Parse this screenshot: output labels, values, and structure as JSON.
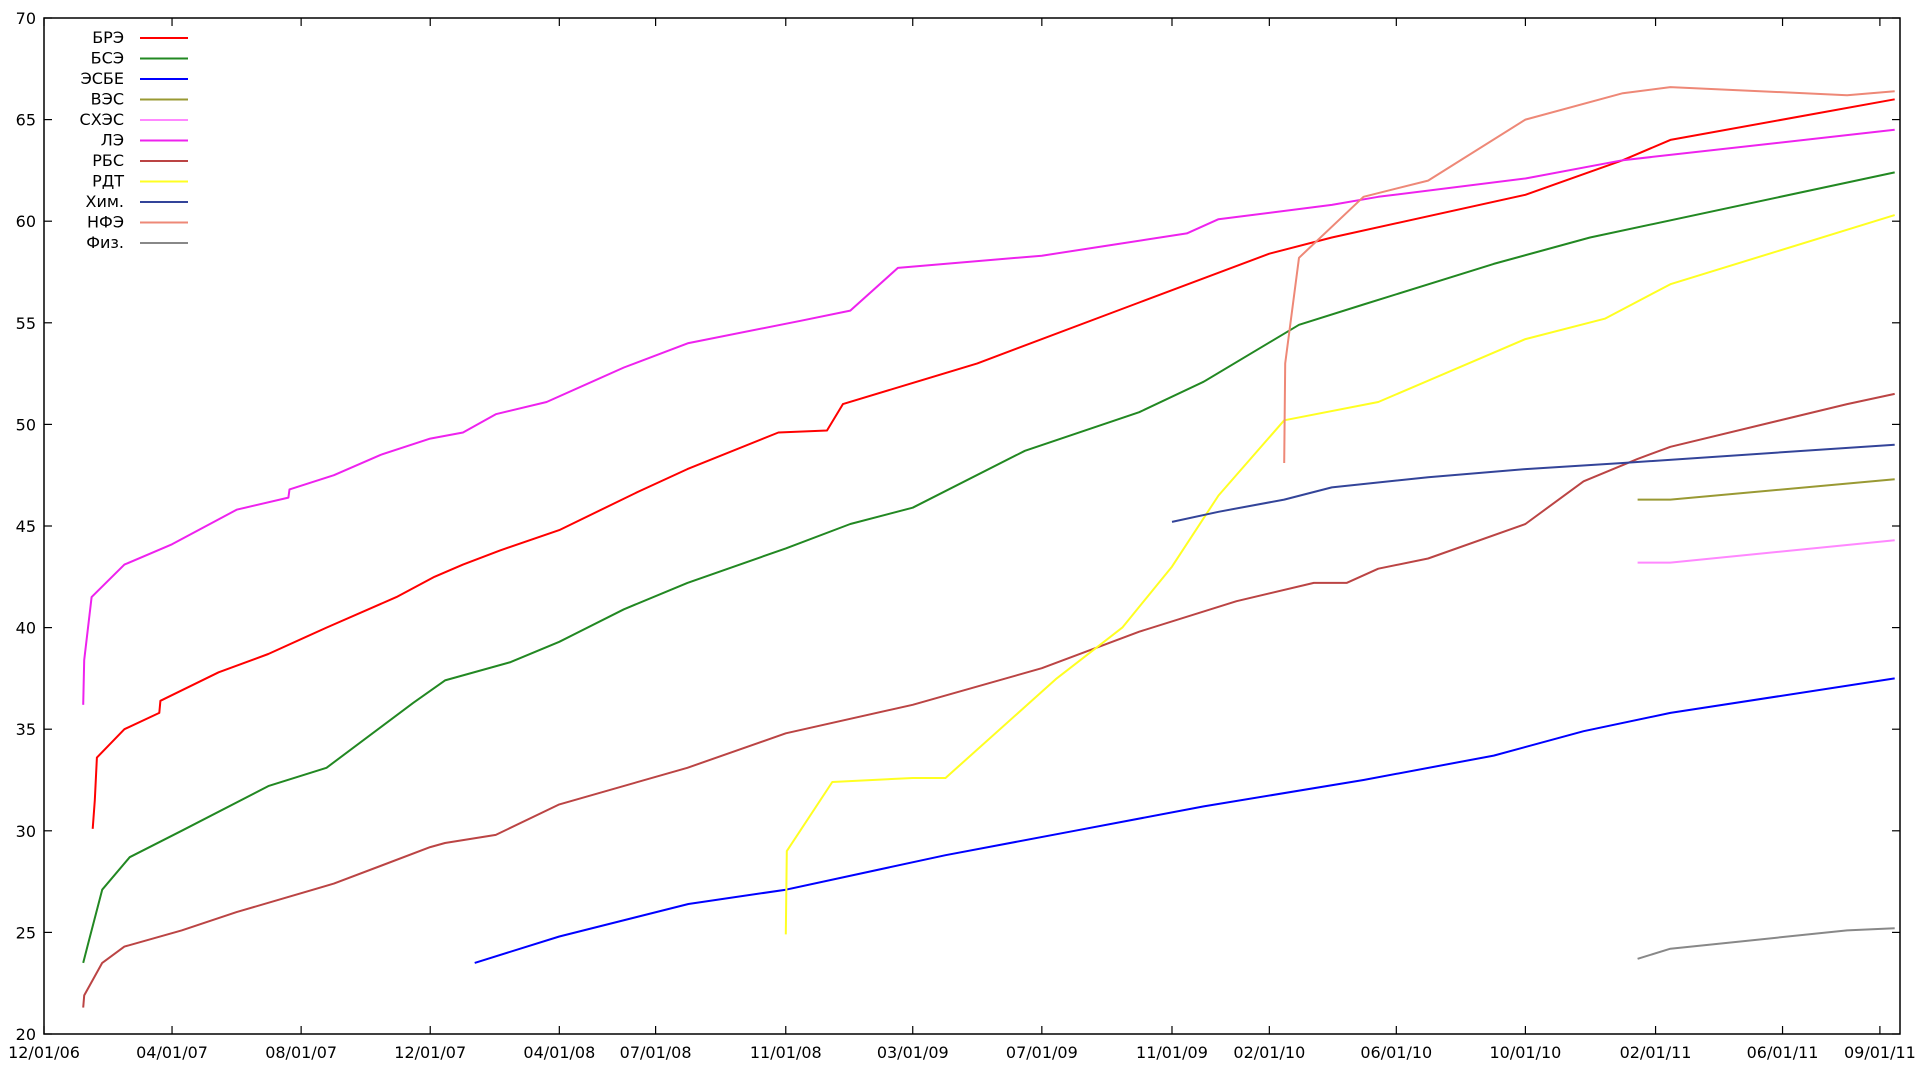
{
  "chart_data": {
    "type": "line",
    "title": "",
    "xlabel": "",
    "ylabel": "",
    "xlim": [
      "2006-12-01",
      "2011-09-20"
    ],
    "ylim": [
      20,
      70
    ],
    "grid": false,
    "legend_position": "top-left",
    "x_ticks": [
      "12/01/06",
      "04/01/07",
      "08/01/07",
      "12/01/07",
      "04/01/08",
      "07/01/08",
      "11/01/08",
      "03/01/09",
      "07/01/09",
      "11/01/09",
      "02/01/10",
      "06/01/10",
      "10/01/10",
      "02/01/11",
      "06/01/11",
      "09/01/11"
    ],
    "y_ticks": [
      20,
      25,
      30,
      35,
      40,
      45,
      50,
      55,
      60,
      65,
      70
    ],
    "series": [
      {
        "name": "БРЭ",
        "color": "#ff0000",
        "points": [
          [
            "2007-01-16",
            30.1
          ],
          [
            "2007-01-18",
            31.5
          ],
          [
            "2007-01-20",
            33.6
          ],
          [
            "2007-02-15",
            35.0
          ],
          [
            "2007-03-20",
            35.8
          ],
          [
            "2007-03-21",
            36.4
          ],
          [
            "2007-05-15",
            37.8
          ],
          [
            "2007-07-01",
            38.7
          ],
          [
            "2007-08-25",
            40.0
          ],
          [
            "2007-10-30",
            41.5
          ],
          [
            "2007-12-05",
            42.5
          ],
          [
            "2008-01-01",
            43.1
          ],
          [
            "2008-02-05",
            43.8
          ],
          [
            "2008-04-01",
            44.8
          ],
          [
            "2008-06-15",
            46.7
          ],
          [
            "2008-07-31",
            47.8
          ],
          [
            "2008-10-25",
            49.6
          ],
          [
            "2008-12-10",
            49.7
          ],
          [
            "2008-12-25",
            51.0
          ],
          [
            "2009-05-01",
            53.0
          ],
          [
            "2009-10-01",
            56.0
          ],
          [
            "2010-02-01",
            58.4
          ],
          [
            "2010-04-01",
            59.2
          ],
          [
            "2010-10-01",
            61.3
          ],
          [
            "2011-01-01",
            63.0
          ],
          [
            "2011-02-15",
            64.0
          ],
          [
            "2011-09-15",
            66.0
          ]
        ]
      },
      {
        "name": "БСЭ",
        "color": "#228822",
        "points": [
          [
            "2007-01-07",
            23.5
          ],
          [
            "2007-01-12",
            24.5
          ],
          [
            "2007-01-25",
            27.1
          ],
          [
            "2007-02-20",
            28.7
          ],
          [
            "2007-04-10",
            30.0
          ],
          [
            "2007-07-01",
            32.2
          ],
          [
            "2007-08-25",
            33.1
          ],
          [
            "2007-11-15",
            36.3
          ],
          [
            "2007-12-15",
            37.4
          ],
          [
            "2008-02-15",
            38.3
          ],
          [
            "2008-04-01",
            39.3
          ],
          [
            "2008-06-01",
            40.9
          ],
          [
            "2008-07-31",
            42.2
          ],
          [
            "2008-11-01",
            43.9
          ],
          [
            "2009-01-01",
            45.1
          ],
          [
            "2009-03-01",
            45.9
          ],
          [
            "2009-06-15",
            48.7
          ],
          [
            "2009-10-01",
            50.6
          ],
          [
            "2009-12-01",
            52.1
          ],
          [
            "2010-03-01",
            54.9
          ],
          [
            "2010-05-01",
            55.9
          ],
          [
            "2010-09-01",
            57.9
          ],
          [
            "2010-12-01",
            59.2
          ],
          [
            "2011-09-15",
            62.4
          ]
        ]
      },
      {
        "name": "ЭСБЕ",
        "color": "#0000ff",
        "points": [
          [
            "2008-01-12",
            23.5
          ],
          [
            "2008-04-01",
            24.8
          ],
          [
            "2008-08-01",
            26.4
          ],
          [
            "2008-11-01",
            27.1
          ],
          [
            "2009-04-01",
            28.8
          ],
          [
            "2009-08-01",
            30.0
          ],
          [
            "2009-12-01",
            31.2
          ],
          [
            "2010-05-01",
            32.5
          ],
          [
            "2010-09-01",
            33.7
          ],
          [
            "2010-11-25",
            34.9
          ],
          [
            "2011-02-15",
            35.8
          ],
          [
            "2011-09-15",
            37.5
          ]
        ]
      },
      {
        "name": "ВЭС",
        "color": "#999933",
        "points": [
          [
            "2011-01-15",
            46.3
          ],
          [
            "2011-02-15",
            46.3
          ],
          [
            "2011-09-15",
            47.3
          ]
        ]
      },
      {
        "name": "СХЭС",
        "color": "#ff88ff",
        "points": [
          [
            "2011-01-15",
            43.2
          ],
          [
            "2011-02-15",
            43.2
          ],
          [
            "2011-09-15",
            44.3
          ]
        ]
      },
      {
        "name": "ЛЭ",
        "color": "#ee22ee",
        "points": [
          [
            "2007-01-07",
            36.2
          ],
          [
            "2007-01-08",
            38.4
          ],
          [
            "2007-01-15",
            41.5
          ],
          [
            "2007-02-15",
            43.1
          ],
          [
            "2007-04-01",
            44.1
          ],
          [
            "2007-06-01",
            45.8
          ],
          [
            "2007-07-20",
            46.4
          ],
          [
            "2007-07-21",
            46.8
          ],
          [
            "2007-09-01",
            47.5
          ],
          [
            "2007-10-15",
            48.5
          ],
          [
            "2007-12-01",
            49.3
          ],
          [
            "2008-01-01",
            49.6
          ],
          [
            "2008-02-01",
            50.5
          ],
          [
            "2008-03-20",
            51.1
          ],
          [
            "2008-06-01",
            52.8
          ],
          [
            "2008-08-01",
            54.0
          ],
          [
            "2008-11-15",
            55.1
          ],
          [
            "2009-01-01",
            55.6
          ],
          [
            "2009-02-15",
            57.7
          ],
          [
            "2009-07-01",
            58.3
          ],
          [
            "2009-09-01",
            58.8
          ],
          [
            "2009-11-15",
            59.4
          ],
          [
            "2009-12-15",
            60.1
          ],
          [
            "2010-04-01",
            60.8
          ],
          [
            "2010-05-15",
            61.2
          ],
          [
            "2010-10-01",
            62.1
          ],
          [
            "2011-01-01",
            63.0
          ],
          [
            "2011-09-15",
            64.5
          ]
        ]
      },
      {
        "name": "РБС",
        "color": "#bb4444",
        "points": [
          [
            "2007-01-07",
            21.3
          ],
          [
            "2007-01-08",
            21.9
          ],
          [
            "2007-01-25",
            23.5
          ],
          [
            "2007-02-15",
            24.3
          ],
          [
            "2007-04-10",
            25.1
          ],
          [
            "2007-06-01",
            26.0
          ],
          [
            "2007-09-01",
            27.4
          ],
          [
            "2007-12-01",
            29.2
          ],
          [
            "2007-12-15",
            29.4
          ],
          [
            "2008-02-01",
            29.8
          ],
          [
            "2008-04-01",
            31.3
          ],
          [
            "2008-07-31",
            33.1
          ],
          [
            "2008-11-01",
            34.8
          ],
          [
            "2009-03-01",
            36.2
          ],
          [
            "2009-07-01",
            38.0
          ],
          [
            "2009-10-01",
            39.8
          ],
          [
            "2010-01-01",
            41.3
          ],
          [
            "2010-03-15",
            42.2
          ],
          [
            "2010-04-15",
            42.2
          ],
          [
            "2010-05-15",
            42.9
          ],
          [
            "2010-07-01",
            43.4
          ],
          [
            "2010-10-01",
            45.1
          ],
          [
            "2010-11-25",
            47.2
          ],
          [
            "2011-01-15",
            48.3
          ],
          [
            "2011-02-15",
            48.9
          ],
          [
            "2011-08-01",
            51.0
          ],
          [
            "2011-09-15",
            51.5
          ]
        ]
      },
      {
        "name": "РДТ",
        "color": "#ffff22",
        "points": [
          [
            "2008-11-01",
            24.9
          ],
          [
            "2008-11-02",
            29.0
          ],
          [
            "2008-12-15",
            32.4
          ],
          [
            "2009-03-01",
            32.6
          ],
          [
            "2009-04-01",
            32.6
          ],
          [
            "2009-07-15",
            37.5
          ],
          [
            "2009-09-15",
            40.0
          ],
          [
            "2009-11-01",
            43.0
          ],
          [
            "2009-12-15",
            46.5
          ],
          [
            "2010-02-15",
            50.2
          ],
          [
            "2010-05-15",
            51.1
          ],
          [
            "2010-10-01",
            54.2
          ],
          [
            "2010-12-15",
            55.2
          ],
          [
            "2011-02-15",
            56.9
          ],
          [
            "2011-09-15",
            60.3
          ]
        ]
      },
      {
        "name": "Хим.",
        "color": "#334499",
        "points": [
          [
            "2009-11-01",
            45.2
          ],
          [
            "2009-12-15",
            45.7
          ],
          [
            "2010-02-15",
            46.3
          ],
          [
            "2010-04-01",
            46.9
          ],
          [
            "2010-07-01",
            47.4
          ],
          [
            "2010-10-01",
            47.8
          ],
          [
            "2011-01-01",
            48.1
          ],
          [
            "2011-09-15",
            49.0
          ]
        ]
      },
      {
        "name": "НФЭ",
        "color": "#ee8877",
        "points": [
          [
            "2010-02-15",
            48.1
          ],
          [
            "2010-02-16",
            53.0
          ],
          [
            "2010-03-01",
            58.2
          ],
          [
            "2010-05-01",
            61.2
          ],
          [
            "2010-07-01",
            62.0
          ],
          [
            "2010-10-01",
            65.0
          ],
          [
            "2011-01-01",
            66.3
          ],
          [
            "2011-02-15",
            66.6
          ],
          [
            "2011-08-01",
            66.2
          ],
          [
            "2011-09-15",
            66.4
          ]
        ]
      },
      {
        "name": "Физ.",
        "color": "#888888",
        "points": [
          [
            "2011-01-15",
            23.7
          ],
          [
            "2011-02-15",
            24.2
          ],
          [
            "2011-08-01",
            25.1
          ],
          [
            "2011-09-15",
            25.2
          ]
        ]
      }
    ]
  }
}
